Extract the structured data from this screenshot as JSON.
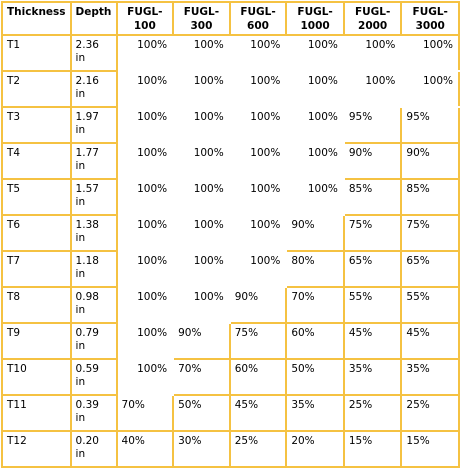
{
  "headers": [
    "Thickness",
    "Depth",
    "FUGL-100",
    "FUGL-300",
    "FUGL-600",
    "FUGL-1000",
    "FUGL-2000",
    "FUGL-3000"
  ],
  "rows": [
    {
      "thickness": "T1",
      "depth": "2.36 in",
      "values": [
        "100%",
        "100%",
        "100%",
        "100%",
        "100%",
        "100%"
      ]
    },
    {
      "thickness": "T2",
      "depth": "2.16 in",
      "values": [
        "100%",
        "100%",
        "100%",
        "100%",
        "100%",
        "100%"
      ]
    },
    {
      "thickness": "T3",
      "depth": "1.97 in",
      "values": [
        "100%",
        "100%",
        "100%",
        "100%",
        "95%",
        "95%"
      ]
    },
    {
      "thickness": "T4",
      "depth": "1.77 in",
      "values": [
        "100%",
        "100%",
        "100%",
        "100%",
        "90%",
        "90%"
      ]
    },
    {
      "thickness": "T5",
      "depth": "1.57 in",
      "values": [
        "100%",
        "100%",
        "100%",
        "100%",
        "85%",
        "85%"
      ]
    },
    {
      "thickness": "T6",
      "depth": "1.38 in",
      "values": [
        "100%",
        "100%",
        "100%",
        "90%",
        "75%",
        "75%"
      ]
    },
    {
      "thickness": "T7",
      "depth": "1.18 in",
      "values": [
        "100%",
        "100%",
        "100%",
        "80%",
        "65%",
        "65%"
      ]
    },
    {
      "thickness": "T8",
      "depth": "0.98 in",
      "values": [
        "100%",
        "100%",
        "90%",
        "70%",
        "55%",
        "55%"
      ]
    },
    {
      "thickness": "T9",
      "depth": "0.79 in",
      "values": [
        "100%",
        "90%",
        "75%",
        "60%",
        "45%",
        "45%"
      ]
    },
    {
      "thickness": "T10",
      "depth": "0.59 in",
      "values": [
        "100%",
        "70%",
        "60%",
        "50%",
        "35%",
        "35%"
      ]
    },
    {
      "thickness": "T11",
      "depth": "0.39 in",
      "values": [
        "70%",
        "50%",
        "45%",
        "35%",
        "25%",
        "25%"
      ]
    },
    {
      "thickness": "T12",
      "depth": "0.20 in",
      "values": [
        "40%",
        "30%",
        "25%",
        "20%",
        "15%",
        "15%"
      ]
    }
  ],
  "colors": {
    "border": "#f5c242",
    "background": "#ffffff",
    "text": "#000000"
  }
}
